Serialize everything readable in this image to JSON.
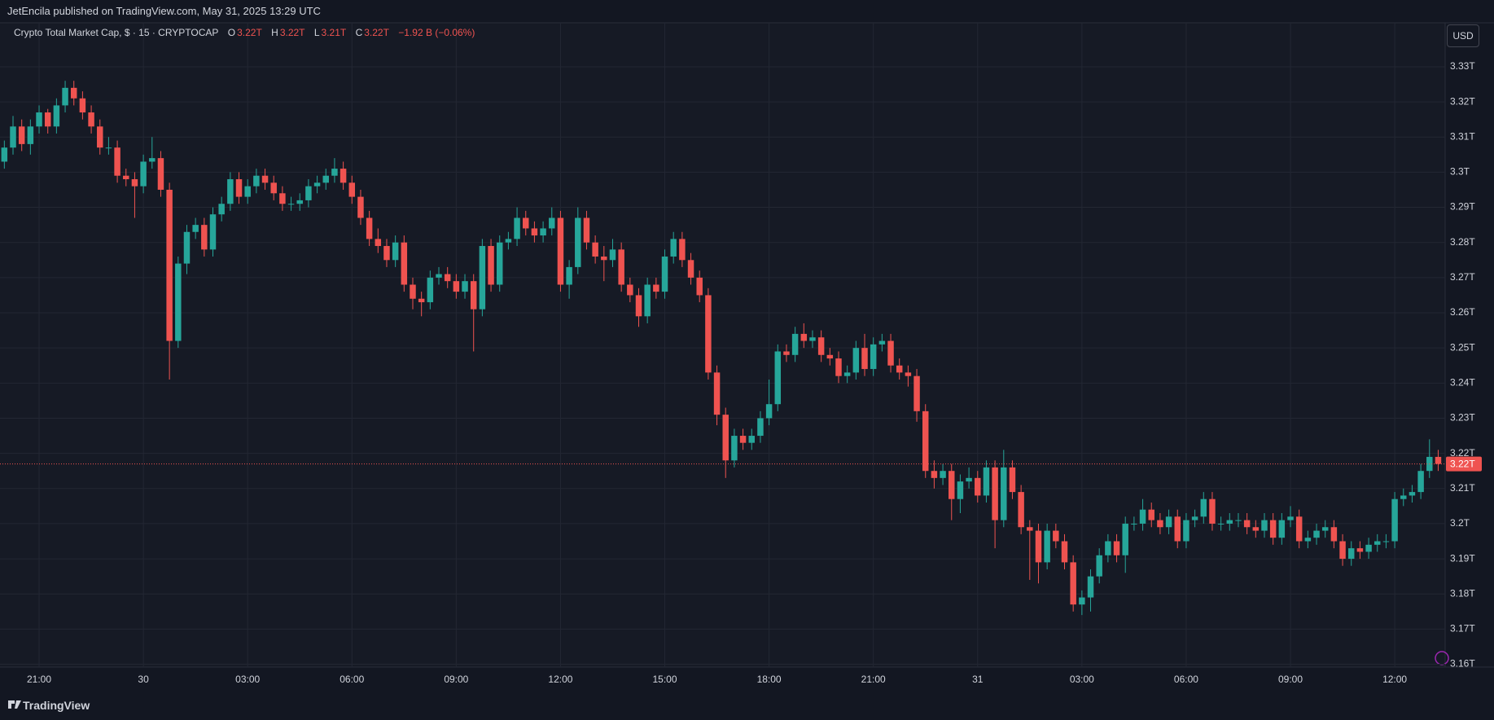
{
  "header": {
    "publisher": "JetEncila published on TradingView.com, May 31, 2025 13:29 UTC"
  },
  "footer": {
    "brand": "TradingView"
  },
  "chart_data": {
    "type": "candlestick",
    "title": "Crypto Total Market Cap, $ · 15 · CRYPTOCAP",
    "ohlc_legend": [
      {
        "key": "O",
        "text": "3.22T"
      },
      {
        "key": "H",
        "text": "3.22T"
      },
      {
        "key": "L",
        "text": "3.21T"
      },
      {
        "key": "C",
        "text": "3.22T"
      }
    ],
    "change": "−1.92 B (−0.06%)",
    "currency": "USD",
    "last_price": {
      "value": 3.217,
      "label": "3.22T"
    },
    "up_color": "#26a69a",
    "down_color": "#ef5350",
    "grid": true,
    "xlim": [
      -0.5,
      165.8
    ],
    "xticks": [
      {
        "value": 4,
        "label": "21:00"
      },
      {
        "value": 16,
        "label": "30"
      },
      {
        "value": 28,
        "label": "03:00"
      },
      {
        "value": 40,
        "label": "06:00"
      },
      {
        "value": 52,
        "label": "09:00"
      },
      {
        "value": 64,
        "label": "12:00"
      },
      {
        "value": 76,
        "label": "15:00"
      },
      {
        "value": 88,
        "label": "18:00"
      },
      {
        "value": 100,
        "label": "21:00"
      },
      {
        "value": 112,
        "label": "31"
      },
      {
        "value": 124,
        "label": "03:00"
      },
      {
        "value": 136,
        "label": "06:00"
      },
      {
        "value": 148,
        "label": "09:00"
      },
      {
        "value": 160,
        "label": "12:00"
      }
    ],
    "ylim": [
      3.1592,
      3.3425
    ],
    "yticks": [
      {
        "value": 3.16,
        "label": "3.16T"
      },
      {
        "value": 3.17,
        "label": "3.17T"
      },
      {
        "value": 3.18,
        "label": "3.18T"
      },
      {
        "value": 3.19,
        "label": "3.19T"
      },
      {
        "value": 3.2,
        "label": "3.2T"
      },
      {
        "value": 3.21,
        "label": "3.21T"
      },
      {
        "value": 3.22,
        "label": "3.22T"
      },
      {
        "value": 3.23,
        "label": "3.23T"
      },
      {
        "value": 3.24,
        "label": "3.24T"
      },
      {
        "value": 3.25,
        "label": "3.25T"
      },
      {
        "value": 3.26,
        "label": "3.26T"
      },
      {
        "value": 3.27,
        "label": "3.27T"
      },
      {
        "value": 3.28,
        "label": "3.28T"
      },
      {
        "value": 3.29,
        "label": "3.29T"
      },
      {
        "value": 3.3,
        "label": "3.3T"
      },
      {
        "value": 3.31,
        "label": "3.31T"
      },
      {
        "value": 3.32,
        "label": "3.32T"
      },
      {
        "value": 3.33,
        "label": "3.33T"
      }
    ],
    "open": [
      3.303,
      3.307,
      3.313,
      3.308,
      3.313,
      3.317,
      3.313,
      3.319,
      3.324,
      3.321,
      3.317,
      3.313,
      3.307,
      3.307,
      3.299,
      3.298,
      3.296,
      3.303,
      3.304,
      3.295,
      3.252,
      3.274,
      3.283,
      3.285,
      3.278,
      3.288,
      3.291,
      3.298,
      3.293,
      3.296,
      3.299,
      3.297,
      3.294,
      3.291,
      3.291,
      3.292,
      3.296,
      3.297,
      3.299,
      3.301,
      3.297,
      3.293,
      3.287,
      3.281,
      3.279,
      3.275,
      3.28,
      3.268,
      3.264,
      3.263,
      3.27,
      3.271,
      3.269,
      3.266,
      3.269,
      3.261,
      3.279,
      3.268,
      3.28,
      3.281,
      3.287,
      3.284,
      3.282,
      3.284,
      3.287,
      3.268,
      3.273,
      3.287,
      3.28,
      3.276,
      3.275,
      3.278,
      3.268,
      3.265,
      3.259,
      3.268,
      3.266,
      3.276,
      3.281,
      3.275,
      3.27,
      3.265,
      3.243,
      3.231,
      3.218,
      3.225,
      3.223,
      3.225,
      3.23,
      3.234,
      3.249,
      3.248,
      3.254,
      3.252,
      3.253,
      3.248,
      3.247,
      3.242,
      3.243,
      3.25,
      3.244,
      3.251,
      3.252,
      3.245,
      3.243,
      3.242,
      3.232,
      3.215,
      3.213,
      3.215,
      3.207,
      3.212,
      3.213,
      3.208,
      3.216,
      3.201,
      3.216,
      3.209,
      3.199,
      3.198,
      3.189,
      3.198,
      3.195,
      3.189,
      3.177,
      3.179,
      3.185,
      3.191,
      3.195,
      3.191,
      3.2,
      3.2,
      3.204,
      3.201,
      3.199,
      3.202,
      3.195,
      3.201,
      3.202,
      3.207,
      3.2,
      3.2,
      3.201,
      3.201,
      3.199,
      3.198,
      3.201,
      3.196,
      3.201,
      3.202,
      3.195,
      3.196,
      3.198,
      3.199,
      3.195,
      3.19,
      3.193,
      3.192,
      3.194,
      3.195,
      3.195,
      3.207,
      3.208,
      3.209,
      3.215,
      3.219
    ],
    "high": [
      3.309,
      3.316,
      3.315,
      3.315,
      3.319,
      3.318,
      3.321,
      3.326,
      3.326,
      3.323,
      3.319,
      3.315,
      3.31,
      3.309,
      3.301,
      3.3,
      3.305,
      3.31,
      3.306,
      3.297,
      3.276,
      3.285,
      3.287,
      3.287,
      3.29,
      3.293,
      3.3,
      3.3,
      3.298,
      3.301,
      3.301,
      3.299,
      3.296,
      3.293,
      3.294,
      3.298,
      3.299,
      3.301,
      3.304,
      3.303,
      3.299,
      3.295,
      3.289,
      3.284,
      3.281,
      3.282,
      3.282,
      3.27,
      3.266,
      3.272,
      3.273,
      3.273,
      3.271,
      3.271,
      3.271,
      3.281,
      3.281,
      3.282,
      3.283,
      3.29,
      3.289,
      3.286,
      3.286,
      3.29,
      3.289,
      3.275,
      3.29,
      3.289,
      3.282,
      3.279,
      3.281,
      3.28,
      3.27,
      3.267,
      3.27,
      3.27,
      3.278,
      3.283,
      3.283,
      3.277,
      3.272,
      3.267,
      3.245,
      3.233,
      3.227,
      3.227,
      3.227,
      3.232,
      3.241,
      3.251,
      3.251,
      3.256,
      3.257,
      3.255,
      3.255,
      3.25,
      3.249,
      3.245,
      3.252,
      3.254,
      3.253,
      3.254,
      3.254,
      3.247,
      3.245,
      3.244,
      3.234,
      3.218,
      3.217,
      3.217,
      3.214,
      3.216,
      3.215,
      3.218,
      3.218,
      3.221,
      3.218,
      3.211,
      3.201,
      3.2,
      3.2,
      3.2,
      3.197,
      3.191,
      3.181,
      3.187,
      3.193,
      3.197,
      3.197,
      3.202,
      3.202,
      3.207,
      3.206,
      3.203,
      3.204,
      3.204,
      3.203,
      3.204,
      3.209,
      3.209,
      3.202,
      3.203,
      3.203,
      3.203,
      3.201,
      3.203,
      3.203,
      3.203,
      3.205,
      3.204,
      3.198,
      3.2,
      3.201,
      3.201,
      3.197,
      3.195,
      3.195,
      3.196,
      3.197,
      3.197,
      3.209,
      3.21,
      3.211,
      3.217,
      3.224,
      3.221
    ],
    "low": [
      3.301,
      3.305,
      3.306,
      3.305,
      3.311,
      3.311,
      3.311,
      3.317,
      3.319,
      3.315,
      3.311,
      3.305,
      3.305,
      3.297,
      3.296,
      3.287,
      3.294,
      3.301,
      3.293,
      3.241,
      3.25,
      3.271,
      3.281,
      3.276,
      3.276,
      3.286,
      3.289,
      3.291,
      3.291,
      3.294,
      3.295,
      3.292,
      3.289,
      3.289,
      3.289,
      3.29,
      3.294,
      3.295,
      3.297,
      3.295,
      3.291,
      3.285,
      3.279,
      3.277,
      3.273,
      3.273,
      3.266,
      3.261,
      3.259,
      3.261,
      3.268,
      3.267,
      3.264,
      3.264,
      3.249,
      3.259,
      3.266,
      3.266,
      3.278,
      3.279,
      3.282,
      3.28,
      3.28,
      3.282,
      3.266,
      3.264,
      3.271,
      3.278,
      3.274,
      3.269,
      3.273,
      3.266,
      3.263,
      3.256,
      3.257,
      3.264,
      3.264,
      3.274,
      3.273,
      3.268,
      3.263,
      3.241,
      3.228,
      3.213,
      3.216,
      3.221,
      3.221,
      3.223,
      3.228,
      3.232,
      3.246,
      3.246,
      3.25,
      3.25,
      3.246,
      3.245,
      3.24,
      3.24,
      3.241,
      3.242,
      3.242,
      3.249,
      3.243,
      3.241,
      3.239,
      3.229,
      3.213,
      3.21,
      3.211,
      3.201,
      3.203,
      3.21,
      3.206,
      3.206,
      3.193,
      3.199,
      3.207,
      3.197,
      3.184,
      3.183,
      3.187,
      3.193,
      3.187,
      3.175,
      3.174,
      3.175,
      3.183,
      3.189,
      3.189,
      3.186,
      3.198,
      3.198,
      3.199,
      3.197,
      3.197,
      3.193,
      3.193,
      3.199,
      3.2,
      3.198,
      3.198,
      3.198,
      3.199,
      3.197,
      3.196,
      3.196,
      3.194,
      3.194,
      3.199,
      3.193,
      3.193,
      3.194,
      3.196,
      3.193,
      3.188,
      3.188,
      3.19,
      3.19,
      3.192,
      3.193,
      3.193,
      3.205,
      3.206,
      3.207,
      3.213,
      3.215
    ],
    "close": [
      3.307,
      3.313,
      3.308,
      3.313,
      3.317,
      3.313,
      3.319,
      3.324,
      3.321,
      3.317,
      3.313,
      3.307,
      3.307,
      3.299,
      3.298,
      3.296,
      3.303,
      3.304,
      3.295,
      3.252,
      3.274,
      3.283,
      3.285,
      3.278,
      3.288,
      3.291,
      3.298,
      3.293,
      3.296,
      3.299,
      3.297,
      3.294,
      3.291,
      3.291,
      3.292,
      3.296,
      3.297,
      3.299,
      3.301,
      3.297,
      3.293,
      3.287,
      3.281,
      3.279,
      3.275,
      3.28,
      3.268,
      3.264,
      3.263,
      3.27,
      3.271,
      3.269,
      3.266,
      3.269,
      3.261,
      3.279,
      3.268,
      3.28,
      3.281,
      3.287,
      3.284,
      3.282,
      3.284,
      3.287,
      3.268,
      3.273,
      3.287,
      3.28,
      3.276,
      3.275,
      3.278,
      3.268,
      3.265,
      3.259,
      3.268,
      3.266,
      3.276,
      3.281,
      3.275,
      3.27,
      3.265,
      3.243,
      3.231,
      3.218,
      3.225,
      3.223,
      3.225,
      3.23,
      3.234,
      3.249,
      3.248,
      3.254,
      3.252,
      3.253,
      3.248,
      3.247,
      3.242,
      3.243,
      3.25,
      3.244,
      3.251,
      3.252,
      3.245,
      3.243,
      3.242,
      3.232,
      3.215,
      3.213,
      3.215,
      3.207,
      3.212,
      3.213,
      3.208,
      3.216,
      3.201,
      3.216,
      3.209,
      3.199,
      3.198,
      3.189,
      3.198,
      3.195,
      3.189,
      3.177,
      3.179,
      3.185,
      3.191,
      3.195,
      3.191,
      3.2,
      3.2,
      3.204,
      3.201,
      3.199,
      3.202,
      3.195,
      3.201,
      3.202,
      3.207,
      3.2,
      3.2,
      3.201,
      3.201,
      3.199,
      3.198,
      3.201,
      3.196,
      3.201,
      3.202,
      3.195,
      3.196,
      3.198,
      3.199,
      3.195,
      3.19,
      3.193,
      3.192,
      3.194,
      3.195,
      3.195,
      3.207,
      3.208,
      3.209,
      3.215,
      3.219,
      3.217
    ]
  }
}
